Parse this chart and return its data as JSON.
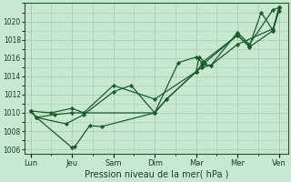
{
  "bg_color": "#c8e8d0",
  "grid_color": "#a8ccb4",
  "line_color": "#1a5c2a",
  "marker_color": "#1a5c2a",
  "xlabel": "Pression niveau de la mer( hPa )",
  "ylim": [
    1005.5,
    1022.0
  ],
  "yticks": [
    1006,
    1008,
    1010,
    1012,
    1014,
    1016,
    1018,
    1020
  ],
  "x_labels": [
    "Lun",
    "Jeu",
    "Sam",
    "Dim",
    "Mar",
    "Mer",
    "Ven"
  ],
  "x_tick_pos": [
    0,
    14,
    28,
    42,
    56,
    70,
    84
  ],
  "xlim": [
    -2,
    87
  ],
  "series_x": [
    [
      0,
      2,
      8,
      14,
      42,
      50,
      56,
      58,
      70,
      74,
      78,
      82,
      84
    ],
    [
      0,
      2,
      14,
      15,
      20,
      24,
      42,
      46,
      56,
      58,
      61,
      70,
      82,
      84
    ],
    [
      0,
      2,
      12,
      18,
      28,
      34,
      42,
      46,
      56,
      57,
      59,
      70,
      74,
      82,
      84,
      84
    ],
    [
      0,
      7,
      14,
      18,
      28,
      42,
      56,
      58,
      61,
      70,
      74,
      82,
      84
    ]
  ],
  "series_y": [
    [
      1010.2,
      1009.5,
      1009.8,
      1010.0,
      1010.0,
      1015.5,
      1016.1,
      1015.5,
      1018.5,
      1017.3,
      1021.0,
      1019.0,
      1021.5
    ],
    [
      1010.2,
      1009.5,
      1006.2,
      1006.3,
      1008.6,
      1008.5,
      1010.0,
      1011.5,
      1014.5,
      1015.0,
      1015.2,
      1017.5,
      1019.2,
      1021.5
    ],
    [
      1010.2,
      1009.5,
      1008.8,
      1009.8,
      1012.3,
      1013.0,
      1010.0,
      1011.5,
      1014.5,
      1016.1,
      1015.5,
      1018.5,
      1017.2,
      1019.0,
      1021.2,
      1021.5
    ],
    [
      1010.2,
      1010.0,
      1010.5,
      1010.0,
      1013.0,
      1011.5,
      1014.5,
      1015.3,
      1015.2,
      1018.8,
      1017.5,
      1021.3,
      1021.5
    ]
  ],
  "xlabel_fontsize": 7.0,
  "ytick_fontsize": 5.5,
  "xtick_fontsize": 6.0,
  "linewidth": 0.9,
  "markersize": 2.2
}
